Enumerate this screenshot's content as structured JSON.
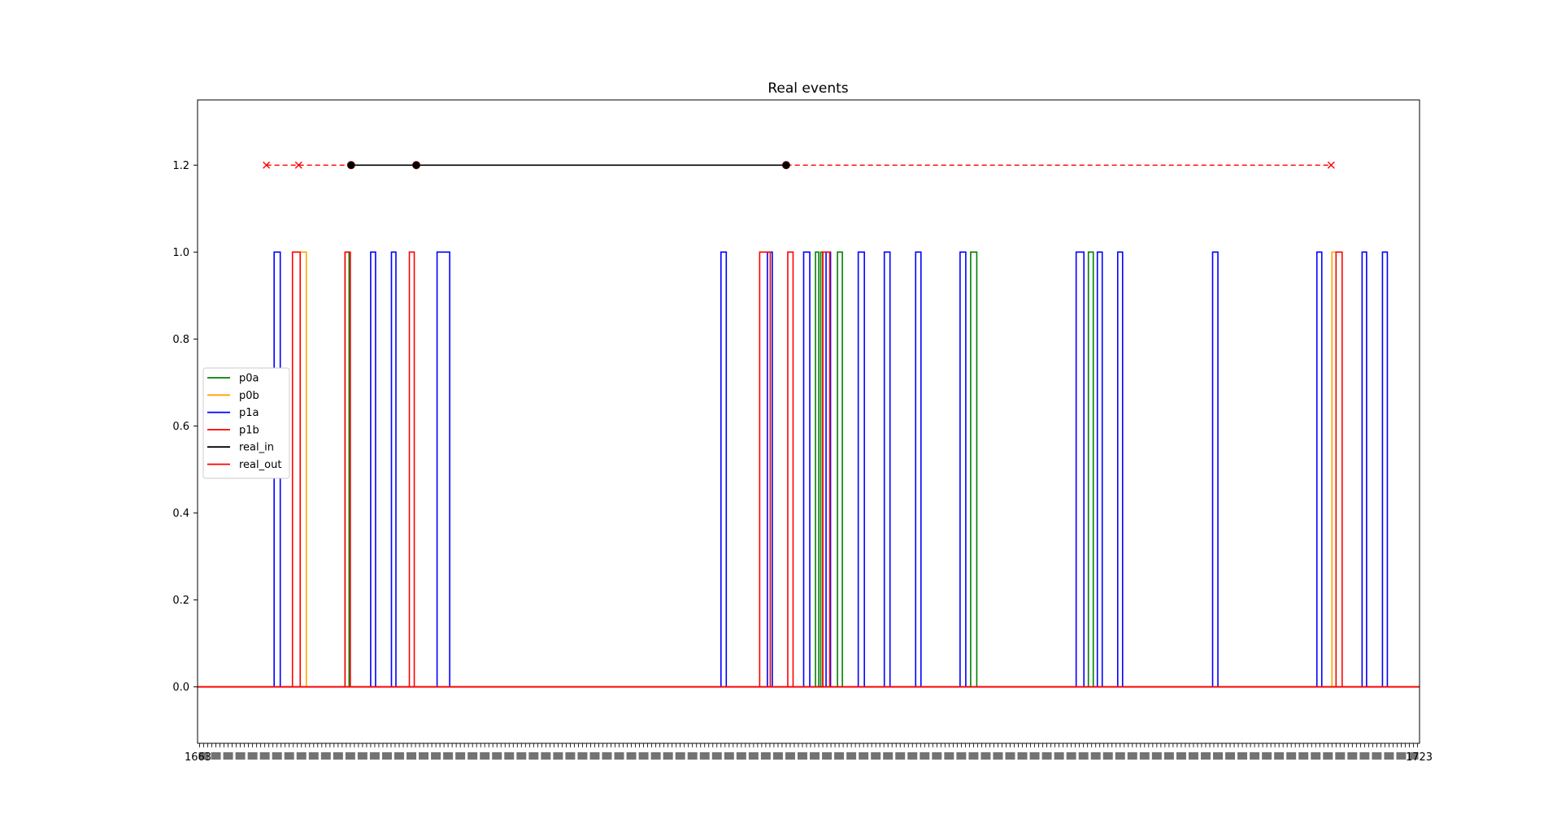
{
  "chart_data": {
    "type": "line",
    "title": "Real events",
    "xlabel": "",
    "ylabel": "",
    "xlim": [
      0,
      300
    ],
    "ylim": [
      -0.13,
      1.35
    ],
    "yticks": [
      0.0,
      0.2,
      0.4,
      0.6,
      0.8,
      1.0,
      1.2
    ],
    "ytick_labels": [
      "0.0",
      "0.2",
      "0.4",
      "0.6",
      "0.8",
      "1.0",
      "1.2"
    ],
    "x_first_tick": "1663",
    "x_last_tick": "1723",
    "x_tick_count": 300,
    "grid": false,
    "legend_position": "center-left",
    "series": [
      {
        "name": "p0a",
        "color": "#008000",
        "pulses": [
          [
            36.2,
            37.2
          ],
          [
            151.7,
            152.5
          ],
          [
            153.0,
            153.5
          ],
          [
            157.1,
            158.3
          ],
          [
            189.8,
            191.3
          ],
          [
            218.7,
            219.9
          ]
        ]
      },
      {
        "name": "p0b",
        "color": "#ffa500",
        "pulses": [
          [
            25.2,
            26.7
          ],
          [
            278.5,
            279.5
          ]
        ]
      },
      {
        "name": "p1a",
        "color": "#0000ff",
        "pulses": [
          [
            18.8,
            20.3
          ],
          [
            42.5,
            43.7
          ],
          [
            47.6,
            48.7
          ],
          [
            58.8,
            61.9
          ],
          [
            128.5,
            129.8
          ],
          [
            139.9,
            141.1
          ],
          [
            148.8,
            150.3
          ],
          [
            154.3,
            155.4
          ],
          [
            162.2,
            163.7
          ],
          [
            168.6,
            170.0
          ],
          [
            176.3,
            177.6
          ],
          [
            187.2,
            188.6
          ],
          [
            215.7,
            217.6
          ],
          [
            220.9,
            222.1
          ],
          [
            225.9,
            227.1
          ],
          [
            249.2,
            250.5
          ],
          [
            274.8,
            276.0
          ],
          [
            285.9,
            287.0
          ],
          [
            290.9,
            292.1
          ]
        ]
      },
      {
        "name": "p1b",
        "color": "#ff0000",
        "pulses": [
          [
            23.3,
            25.2
          ],
          [
            36.2,
            37.5
          ],
          [
            52.0,
            53.2
          ],
          [
            138.0,
            140.6
          ],
          [
            144.9,
            146.2
          ],
          [
            153.5,
            155.2
          ],
          [
            279.5,
            281.0
          ]
        ]
      }
    ],
    "real_in": {
      "name": "real_in",
      "color": "#000000",
      "y": 1.2,
      "x": [
        37.7,
        53.7,
        144.5
      ]
    },
    "real_out": {
      "name": "real_out",
      "color": "#ff0000",
      "y": 1.2,
      "x": [
        16.9,
        24.8,
        278.3
      ],
      "span": [
        16.9,
        278.3
      ]
    },
    "baseline": {
      "y": 0.0,
      "color": "#ff0000"
    }
  }
}
